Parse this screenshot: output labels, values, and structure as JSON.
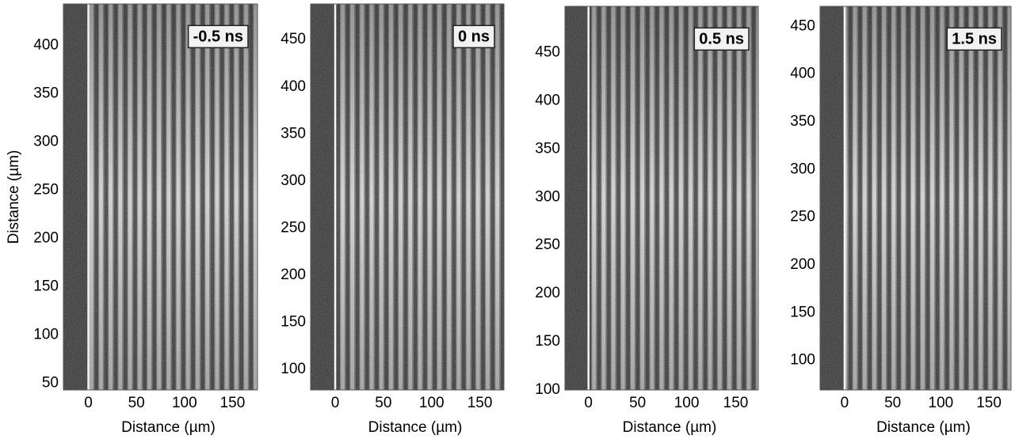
{
  "chart_data": [
    {
      "type": "image",
      "label": "-0.5 ns",
      "xlabel": "Distance (µm)",
      "ylabel": "Distance (µm)",
      "xlim": [
        -26,
        176
      ],
      "ylim": [
        43,
        443
      ],
      "xticks": [
        0,
        50,
        100,
        150
      ],
      "yticks": [
        50,
        100,
        150,
        200,
        250,
        300,
        350,
        400
      ]
    },
    {
      "type": "image",
      "label": "0 ns",
      "xlabel": "Distance (µm)",
      "xlim": [
        -25.5,
        175
      ],
      "ylim": [
        78,
        488
      ],
      "xticks": [
        0,
        50,
        100,
        150
      ],
      "yticks": [
        100,
        150,
        200,
        250,
        300,
        350,
        400,
        450
      ]
    },
    {
      "type": "image",
      "label": "0.5 ns",
      "xlabel": "Distance (µm)",
      "xlim": [
        -24,
        173
      ],
      "ylim": [
        100,
        498
      ],
      "xticks": [
        0,
        50,
        100,
        150
      ],
      "yticks": [
        100,
        150,
        200,
        250,
        300,
        350,
        400,
        450
      ]
    },
    {
      "type": "image",
      "label": "1.5 ns",
      "xlabel": "Distance (µm)",
      "xlim": [
        -25.5,
        173
      ],
      "ylim": [
        69,
        471
      ],
      "xticks": [
        0,
        50,
        100,
        150
      ],
      "yticks": [
        100,
        150,
        200,
        250,
        300,
        350,
        400,
        450
      ]
    }
  ]
}
